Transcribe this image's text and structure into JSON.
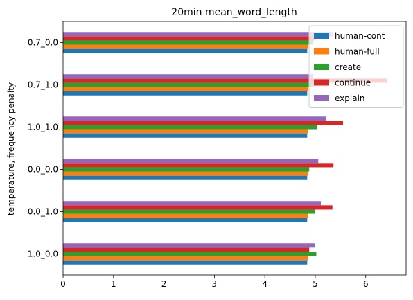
{
  "chart_data": {
    "type": "bar",
    "orientation": "horizontal",
    "title": "20min mean_word_length",
    "xlabel": "",
    "ylabel": "temperature, frequency penalty",
    "xlim": [
      0,
      6.8
    ],
    "xticks": [
      0,
      1,
      2,
      3,
      4,
      5,
      6
    ],
    "categories": [
      "1.0_0.0",
      "0.0_1.0",
      "0.0_0.0",
      "1.0_1.0",
      "0.7_1.0",
      "0.7_0.0"
    ],
    "series": [
      {
        "name": "human-cont",
        "color": "#1f77b4",
        "values": [
          4.84,
          4.84,
          4.84,
          4.84,
          4.84,
          4.84
        ]
      },
      {
        "name": "human-full",
        "color": "#ff7f0e",
        "values": [
          4.86,
          4.86,
          4.86,
          4.86,
          4.86,
          4.86
        ]
      },
      {
        "name": "create",
        "color": "#2ca02c",
        "values": [
          5.02,
          5.0,
          4.88,
          5.04,
          4.98,
          4.96
        ]
      },
      {
        "name": "continue",
        "color": "#d62728",
        "values": [
          4.88,
          5.34,
          5.36,
          5.55,
          6.43,
          5.0
        ]
      },
      {
        "name": "explain",
        "color": "#9467bd",
        "values": [
          5.0,
          5.11,
          5.06,
          5.22,
          4.96,
          5.34
        ]
      }
    ],
    "legend_position": "top-right",
    "grid": false
  }
}
